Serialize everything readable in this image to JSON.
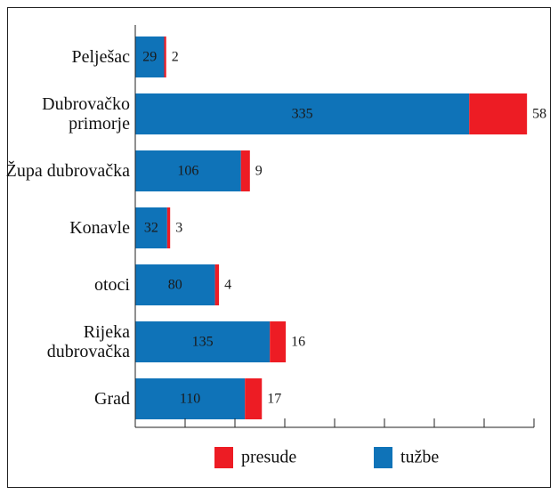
{
  "chart_data": {
    "type": "stacked-barh",
    "categories": [
      "Pelješac",
      "Dubrovačko primorje",
      "Župa dubrovačka",
      "Konavle",
      "otoci",
      "Rijeka dubrovačka",
      "Grad"
    ],
    "series": [
      {
        "name": "tužbe",
        "color": "#0f73b8",
        "values": [
          29,
          335,
          106,
          32,
          80,
          135,
          110
        ]
      },
      {
        "name": "presude",
        "color": "#ed1c24",
        "values": [
          2,
          58,
          9,
          3,
          4,
          16,
          17
        ]
      }
    ],
    "xlim": [
      0,
      400
    ],
    "xticks": [
      0,
      50,
      100,
      150,
      200,
      250,
      300,
      350,
      400
    ]
  }
}
